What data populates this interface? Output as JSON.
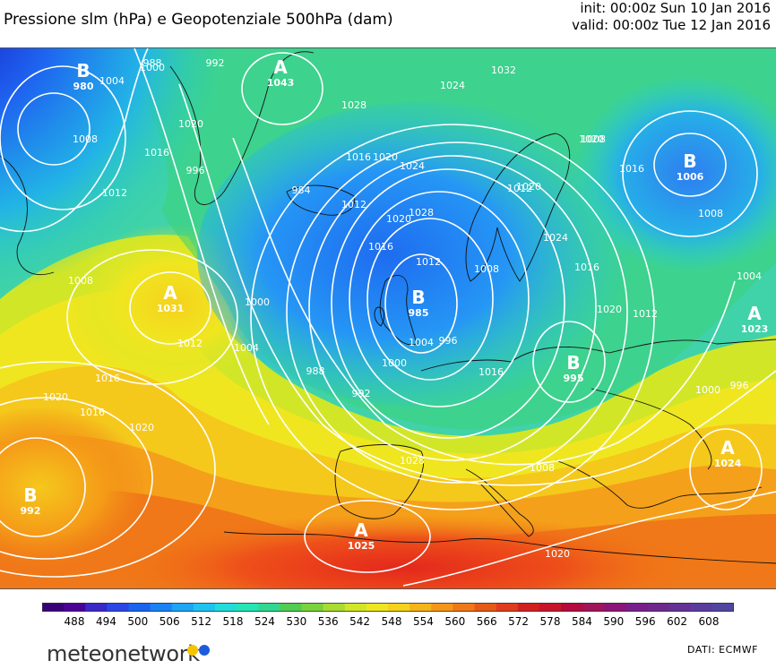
{
  "header": {
    "title": "Pressione slm (hPa) e Geopotenziale 500hPa (dam)",
    "init": "init: 00:00z Sun 10 Jan 2016",
    "valid": "valid: 00:00z Tue 12 Jan 2016"
  },
  "colorbar": {
    "labels": [
      "488",
      "494",
      "500",
      "506",
      "512",
      "518",
      "524",
      "530",
      "536",
      "542",
      "548",
      "554",
      "560",
      "566",
      "572",
      "578",
      "584",
      "590",
      "596",
      "602",
      "608"
    ],
    "colors": [
      "#3a0078",
      "#4b0096",
      "#3a28c8",
      "#2a46e6",
      "#1a64f0",
      "#1a82f5",
      "#1ea5f5",
      "#20c3f0",
      "#22dcdc",
      "#24e6b4",
      "#30d890",
      "#50cc50",
      "#7ad23c",
      "#a8dc32",
      "#d2e628",
      "#f0e620",
      "#f5d21c",
      "#f5b41a",
      "#f59618",
      "#f07818",
      "#e65a18",
      "#e03c1c",
      "#d2201e",
      "#c81428",
      "#b40a3c",
      "#a0145a",
      "#8c1478",
      "#781e8c",
      "#6e288c",
      "#643296",
      "#5a3ca0",
      "#5046a0"
    ]
  },
  "pressure_centers": [
    {
      "type": "B",
      "value": "980"
    },
    {
      "type": "A",
      "value": "1043"
    },
    {
      "type": "B",
      "value": "1006"
    },
    {
      "type": "A",
      "value": "1031"
    },
    {
      "type": "B",
      "value": "985"
    },
    {
      "type": "B",
      "value": "995"
    },
    {
      "type": "A",
      "value": "1023"
    },
    {
      "type": "A",
      "value": "1024"
    },
    {
      "type": "B",
      "value": "992"
    },
    {
      "type": "A",
      "value": "1025"
    }
  ],
  "isobar_labels": [
    "1032",
    "1024",
    "1028",
    "1020",
    "1016",
    "1012",
    "1008",
    "1004",
    "1000",
    "996",
    "992",
    "988",
    "984",
    "1012",
    "1016",
    "1020",
    "1024",
    "1028",
    "1020",
    "1016",
    "1012",
    "1008",
    "1004",
    "1000",
    "996",
    "1016",
    "1020",
    "1024",
    "1016",
    "1020",
    "1012",
    "1008",
    "1016",
    "1020",
    "1012",
    "1008",
    "1004",
    "1000",
    "996",
    "992",
    "988",
    "1000",
    "1004",
    "1008",
    "1012",
    "1016",
    "1020",
    "1016",
    "1020",
    "1008",
    "1020",
    "1028"
  ],
  "footer": {
    "logo_text": "meteonetwork",
    "source": "DATI:  ECMWF"
  }
}
